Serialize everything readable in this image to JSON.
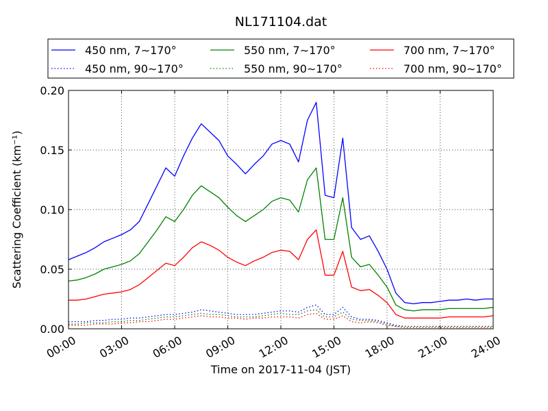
{
  "chart_data": {
    "type": "line",
    "title": "NL171104.dat",
    "xlabel": "Time on 2017-11-04 (JST)",
    "ylabel": "Scattering Coefficient (km⁻¹)",
    "xlim": [
      0,
      24
    ],
    "ylim": [
      0,
      0.2
    ],
    "grid": true,
    "legend_position": "top",
    "x_ticks": [
      0,
      3,
      6,
      9,
      12,
      15,
      18,
      21,
      24
    ],
    "x_tick_labels": [
      "00:00",
      "03:00",
      "06:00",
      "09:00",
      "12:00",
      "15:00",
      "18:00",
      "21:00",
      "24:00"
    ],
    "y_ticks": [
      0,
      0.05,
      0.1,
      0.15,
      0.2
    ],
    "y_tick_labels": [
      "0.00",
      "0.05",
      "0.10",
      "0.15",
      "0.20"
    ],
    "x": [
      0,
      0.5,
      1,
      1.5,
      2,
      2.5,
      3,
      3.5,
      4,
      4.5,
      5,
      5.5,
      6,
      6.5,
      7,
      7.5,
      8,
      8.5,
      9,
      9.5,
      10,
      10.5,
      11,
      11.5,
      12,
      12.5,
      13,
      13.5,
      14,
      14.5,
      15,
      15.5,
      16,
      16.5,
      17,
      17.5,
      18,
      18.5,
      19,
      19.5,
      20,
      20.5,
      21,
      21.5,
      22,
      22.5,
      23,
      23.5,
      24
    ],
    "series": [
      {
        "name": "450 nm, 7∼170°",
        "color": "#0000ff",
        "dash": "solid",
        "values": [
          0.058,
          0.061,
          0.064,
          0.068,
          0.073,
          0.076,
          0.079,
          0.083,
          0.09,
          0.105,
          0.12,
          0.135,
          0.128,
          0.145,
          0.16,
          0.172,
          0.165,
          0.158,
          0.145,
          0.138,
          0.13,
          0.138,
          0.145,
          0.155,
          0.158,
          0.155,
          0.14,
          0.175,
          0.19,
          0.112,
          0.11,
          0.16,
          0.085,
          0.075,
          0.078,
          0.065,
          0.05,
          0.03,
          0.022,
          0.021,
          0.022,
          0.022,
          0.023,
          0.024,
          0.024,
          0.025,
          0.024,
          0.025,
          0.025
        ]
      },
      {
        "name": "550 nm, 7∼170°",
        "color": "#008000",
        "dash": "solid",
        "values": [
          0.04,
          0.041,
          0.043,
          0.046,
          0.05,
          0.052,
          0.054,
          0.057,
          0.063,
          0.073,
          0.083,
          0.094,
          0.09,
          0.1,
          0.112,
          0.12,
          0.115,
          0.11,
          0.102,
          0.095,
          0.09,
          0.095,
          0.1,
          0.107,
          0.11,
          0.108,
          0.098,
          0.125,
          0.135,
          0.075,
          0.075,
          0.11,
          0.06,
          0.052,
          0.054,
          0.045,
          0.035,
          0.02,
          0.016,
          0.015,
          0.016,
          0.016,
          0.016,
          0.017,
          0.017,
          0.017,
          0.017,
          0.017,
          0.018
        ]
      },
      {
        "name": "700 nm, 7∼170°",
        "color": "#ff0000",
        "dash": "solid",
        "values": [
          0.024,
          0.024,
          0.025,
          0.027,
          0.029,
          0.03,
          0.031,
          0.033,
          0.037,
          0.043,
          0.049,
          0.055,
          0.053,
          0.06,
          0.068,
          0.073,
          0.07,
          0.066,
          0.06,
          0.056,
          0.053,
          0.057,
          0.06,
          0.064,
          0.066,
          0.065,
          0.058,
          0.075,
          0.083,
          0.045,
          0.045,
          0.065,
          0.035,
          0.032,
          0.033,
          0.028,
          0.022,
          0.012,
          0.009,
          0.009,
          0.009,
          0.009,
          0.009,
          0.01,
          0.01,
          0.01,
          0.01,
          0.01,
          0.011
        ]
      },
      {
        "name": "450 nm, 90∼170°",
        "color": "#0000ff",
        "dash": "dotted",
        "values": [
          0.006,
          0.006,
          0.006,
          0.007,
          0.007,
          0.008,
          0.008,
          0.009,
          0.009,
          0.01,
          0.011,
          0.012,
          0.012,
          0.013,
          0.014,
          0.016,
          0.015,
          0.014,
          0.013,
          0.012,
          0.012,
          0.012,
          0.013,
          0.014,
          0.015,
          0.015,
          0.014,
          0.018,
          0.02,
          0.012,
          0.012,
          0.018,
          0.01,
          0.008,
          0.008,
          0.007,
          0.005,
          0.003,
          0.002,
          0.002,
          0.002,
          0.002,
          0.002,
          0.002,
          0.002,
          0.002,
          0.002,
          0.002,
          0.002
        ]
      },
      {
        "name": "550 nm, 90∼170°",
        "color": "#008000",
        "dash": "dotted",
        "values": [
          0.004,
          0.004,
          0.005,
          0.005,
          0.005,
          0.006,
          0.006,
          0.007,
          0.007,
          0.008,
          0.009,
          0.01,
          0.01,
          0.011,
          0.012,
          0.013,
          0.012,
          0.012,
          0.011,
          0.01,
          0.01,
          0.01,
          0.011,
          0.012,
          0.013,
          0.012,
          0.012,
          0.015,
          0.016,
          0.01,
          0.01,
          0.014,
          0.008,
          0.007,
          0.007,
          0.006,
          0.004,
          0.002,
          0.002,
          0.002,
          0.002,
          0.002,
          0.002,
          0.002,
          0.002,
          0.002,
          0.002,
          0.002,
          0.002
        ]
      },
      {
        "name": "700 nm, 90∼170°",
        "color": "#ff0000",
        "dash": "dotted",
        "values": [
          0.003,
          0.003,
          0.003,
          0.004,
          0.004,
          0.004,
          0.005,
          0.005,
          0.006,
          0.006,
          0.007,
          0.008,
          0.008,
          0.009,
          0.01,
          0.011,
          0.01,
          0.01,
          0.009,
          0.009,
          0.008,
          0.009,
          0.009,
          0.01,
          0.01,
          0.01,
          0.009,
          0.012,
          0.013,
          0.008,
          0.008,
          0.011,
          0.006,
          0.005,
          0.006,
          0.005,
          0.003,
          0.002,
          0.001,
          0.001,
          0.001,
          0.001,
          0.001,
          0.001,
          0.001,
          0.001,
          0.001,
          0.001,
          0.001
        ]
      }
    ]
  }
}
